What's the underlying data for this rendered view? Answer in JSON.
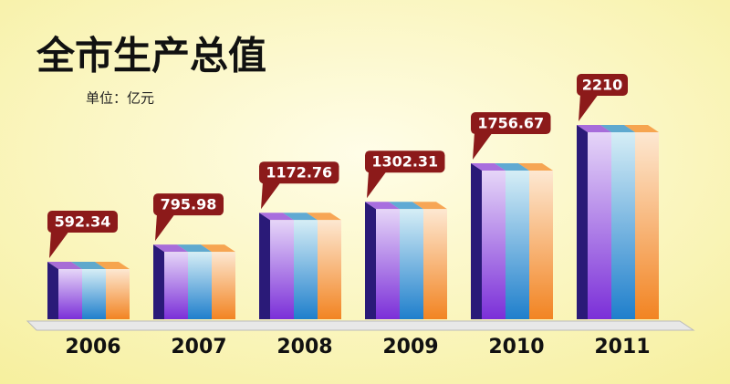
{
  "chart_data": {
    "type": "bar3d",
    "title": "全市生产总值",
    "subtitle": "单位：亿元",
    "categories": [
      "2006",
      "2007",
      "2008",
      "2009",
      "2010",
      "2011"
    ],
    "values": [
      592.34,
      795.98,
      1172.76,
      1302.31,
      1756.67,
      2210
    ],
    "colors": [
      "#8b3fe0",
      "#2b8fd2",
      "#f48a2a"
    ],
    "label_color": "#8c1a1a"
  }
}
